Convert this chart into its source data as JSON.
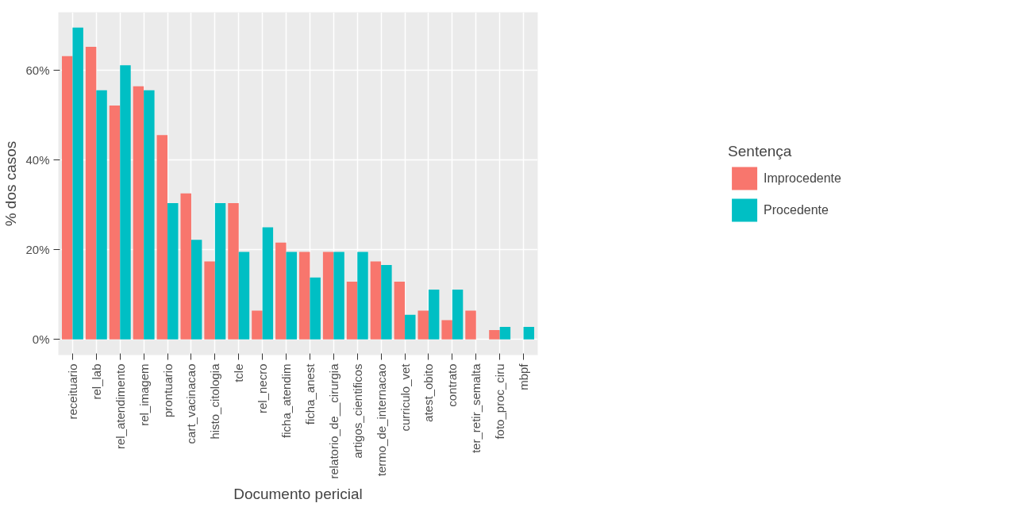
{
  "chart_data": {
    "type": "bar",
    "xlabel": "Documento pericial",
    "ylabel": "% dos casos",
    "legend_title": "Sentença",
    "categories": [
      "receituario",
      "rel_lab",
      "rel_atendimento",
      "rel_imagem",
      "prontuario",
      "cart_vacinacao",
      "histo_citologia",
      "tcle",
      "rel_necro",
      "ficha_atendim",
      "ficha_anest",
      "relatorio_de__cirurgia",
      "artigos_cientificos",
      "termo_de_internacao",
      "curriculo_vet",
      "atest_obito",
      "contrato",
      "ter_retir_semalta",
      "foto_proc_ciru",
      "mbpf"
    ],
    "series": [
      {
        "name": "Improcedente",
        "color": "#f8766d",
        "values": [
          63.2,
          65.3,
          52.2,
          56.5,
          45.6,
          32.6,
          17.4,
          30.4,
          6.4,
          21.6,
          19.5,
          19.5,
          12.9,
          17.4,
          12.9,
          6.4,
          4.3,
          6.4,
          2.1,
          0
        ]
      },
      {
        "name": "Procedente",
        "color": "#00bfc4",
        "values": [
          69.6,
          55.6,
          61.2,
          55.6,
          30.4,
          22.2,
          30.4,
          19.5,
          25.0,
          19.5,
          13.8,
          19.5,
          19.5,
          16.6,
          5.5,
          11.1,
          11.1,
          0,
          2.8,
          2.8
        ]
      }
    ],
    "ylim": [
      -3.5,
      73
    ],
    "yticks": [
      {
        "value": 0,
        "label": "0%"
      },
      {
        "value": 20,
        "label": "20%"
      },
      {
        "value": 40,
        "label": "40%"
      },
      {
        "value": 60,
        "label": "60%"
      }
    ],
    "grid": true,
    "legend": "right"
  }
}
